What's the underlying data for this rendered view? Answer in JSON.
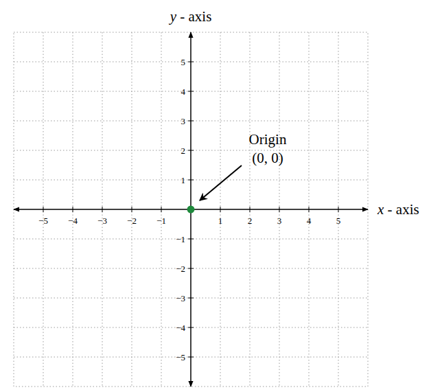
{
  "chart_data": {
    "type": "scatter",
    "x_label": "x - axis",
    "y_label": "y - axis",
    "x": [
      0
    ],
    "values": [
      0
    ],
    "color": "#1e8a3c",
    "marker": "circle",
    "xlim": [
      -6,
      6
    ],
    "ylim": [
      -6,
      6
    ],
    "xticks": [
      {
        "value": -5,
        "label": "−5"
      },
      {
        "value": -4,
        "label": "−4"
      },
      {
        "value": -3,
        "label": "−3"
      },
      {
        "value": -2,
        "label": "−2"
      },
      {
        "value": -1,
        "label": "−1"
      },
      1,
      2,
      3,
      4,
      5
    ],
    "yticks": [
      {
        "value": -5,
        "label": "−5"
      },
      {
        "value": -4,
        "label": "−4"
      },
      {
        "value": -3,
        "label": "−3"
      },
      {
        "value": -2,
        "label": "−2"
      },
      {
        "value": -1,
        "label": "−1"
      },
      1,
      2,
      3,
      4,
      5
    ],
    "grid": true,
    "annotations": [
      {
        "text": [
          "Origin",
          "(0, 0)"
        ],
        "x": 0,
        "y": 0
      }
    ]
  }
}
